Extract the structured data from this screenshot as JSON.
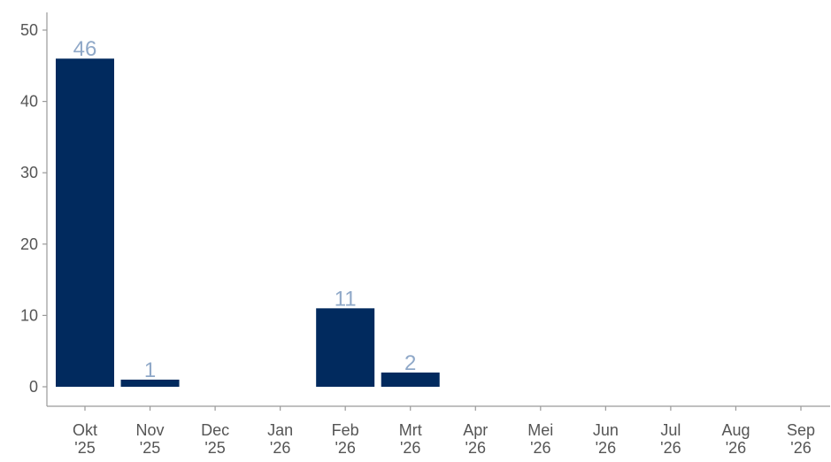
{
  "chart_data": {
    "type": "bar",
    "title": "",
    "xlabel": "",
    "ylabel": "",
    "categories": [
      [
        "Okt",
        "'25"
      ],
      [
        "Nov",
        "'25"
      ],
      [
        "Dec",
        "'25"
      ],
      [
        "Jan",
        "'26"
      ],
      [
        "Feb",
        "'26"
      ],
      [
        "Mrt",
        "'26"
      ],
      [
        "Apr",
        "'26"
      ],
      [
        "Mei",
        "'26"
      ],
      [
        "Jun",
        "'26"
      ],
      [
        "Jul",
        "'26"
      ],
      [
        "Aug",
        "'26"
      ],
      [
        "Sep",
        "'26"
      ]
    ],
    "values": [
      46,
      1,
      0,
      0,
      11,
      2,
      0,
      0,
      0,
      0,
      0,
      0
    ],
    "data_labels": [
      "46",
      "1",
      "",
      "",
      "11",
      "2",
      "",
      "",
      "",
      "",
      "",
      ""
    ],
    "ylim": [
      0,
      52
    ],
    "yticks": [
      0,
      10,
      20,
      30,
      40,
      50
    ],
    "grid": false,
    "legend": "none",
    "colors": {
      "bar": "#012a5e",
      "data_label": "#8fa8c8",
      "axis": "#9a9a9a",
      "tick_text": "#555555"
    }
  }
}
